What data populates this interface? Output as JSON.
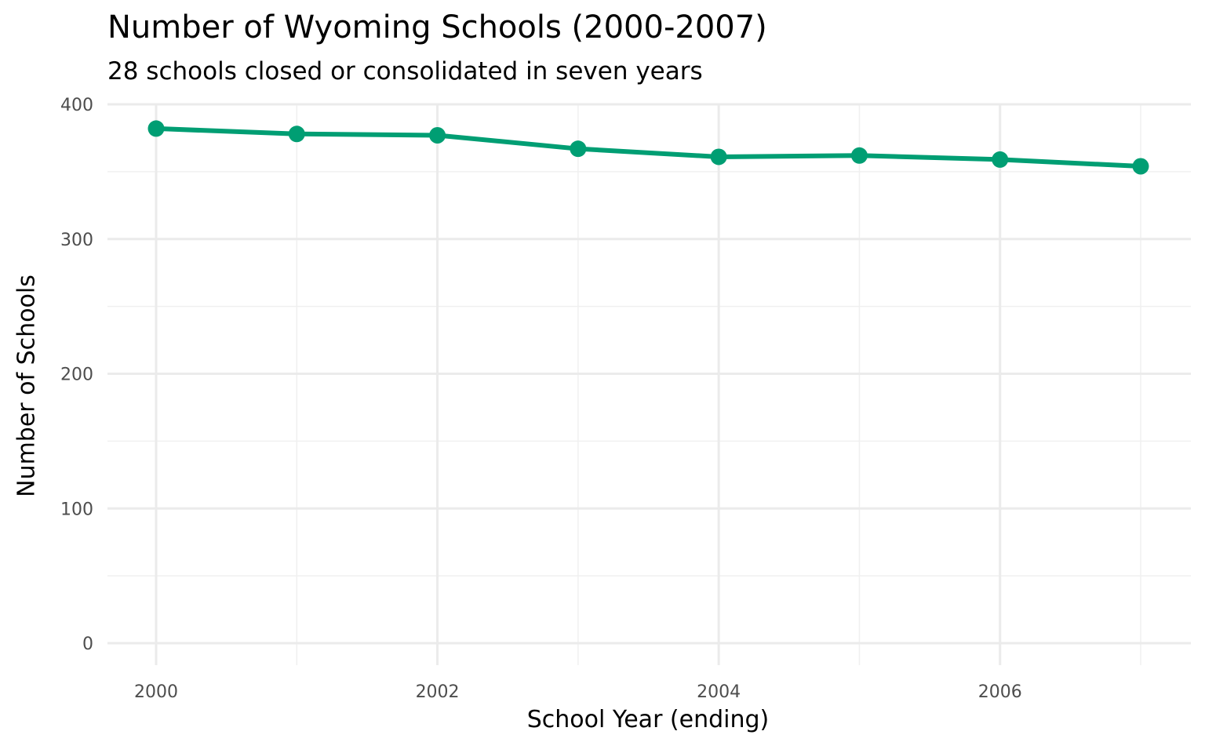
{
  "chart_data": {
    "type": "line",
    "title": "Number of Wyoming Schools (2000-2007)",
    "subtitle": "28 schools closed or consolidated in seven years",
    "xlabel": "School Year (ending)",
    "ylabel": "Number of Schools",
    "x": [
      2000,
      2001,
      2002,
      2003,
      2004,
      2005,
      2006,
      2007
    ],
    "series": [
      {
        "name": "Schools",
        "color": "#009E73",
        "values": [
          382,
          378,
          377,
          367,
          361,
          362,
          359,
          354
        ]
      }
    ],
    "xticks": [
      "2000",
      "2002",
      "2004",
      "2006"
    ],
    "yticks": [
      "0",
      "100",
      "200",
      "300",
      "400"
    ],
    "ylim": [
      0,
      400
    ],
    "xlim": [
      2000,
      2007
    ],
    "grid": true,
    "legend": "none"
  }
}
